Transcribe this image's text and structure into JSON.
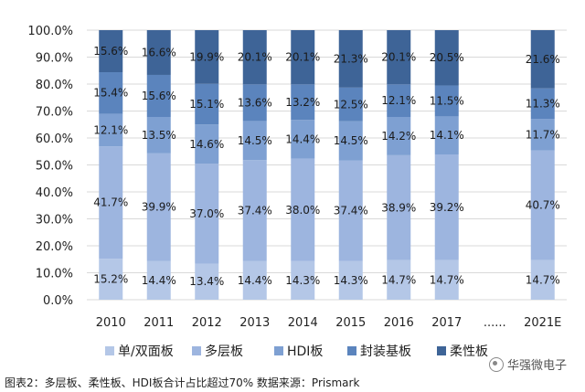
{
  "caption": "图表2：多层板、柔性板、HDI板合计占比超过70% 数据来源：Prismark",
  "watermark": "华强微电子",
  "chart_data": {
    "type": "bar",
    "stacked": true,
    "categories": [
      "2010",
      "2011",
      "2012",
      "2013",
      "2014",
      "2015",
      "2016",
      "2017",
      "......",
      "2021E"
    ],
    "yticks": [
      "0.0%",
      "10.0%",
      "20.0%",
      "30.0%",
      "40.0%",
      "50.0%",
      "60.0%",
      "70.0%",
      "80.0%",
      "90.0%",
      "100.0%"
    ],
    "ylim": [
      0,
      100
    ],
    "grid": true,
    "legend_position": "bottom",
    "series": [
      {
        "name": "单/双面板",
        "color": "#b4c7e7",
        "values": [
          15.2,
          14.4,
          13.4,
          14.4,
          14.3,
          14.3,
          14.7,
          14.7,
          null,
          14.7
        ],
        "labels": [
          "15.2%",
          "14.4%",
          "13.4%",
          "14.4%",
          "14.3%",
          "14.3%",
          "14.7%",
          "14.7%",
          "",
          "14.7%"
        ]
      },
      {
        "name": "多层板",
        "color": "#9db5df",
        "values": [
          41.7,
          39.9,
          37.0,
          37.4,
          38.0,
          37.4,
          38.9,
          39.2,
          null,
          40.7
        ],
        "labels": [
          "41.7%",
          "39.9%",
          "37.0%",
          "37.4%",
          "38.0%",
          "37.4%",
          "38.9%",
          "39.2%",
          "",
          "40.7%"
        ]
      },
      {
        "name": "HDI板",
        "color": "#7ea0d2",
        "values": [
          12.1,
          13.5,
          14.6,
          14.5,
          14.4,
          14.5,
          14.2,
          14.1,
          null,
          11.7
        ],
        "labels": [
          "12.1%",
          "13.5%",
          "14.6%",
          "14.5%",
          "14.4%",
          "14.5%",
          "14.2%",
          "14.1%",
          "",
          "11.7%"
        ]
      },
      {
        "name": "封装基板",
        "color": "#5b84bd",
        "values": [
          15.4,
          15.6,
          15.1,
          13.6,
          13.2,
          12.5,
          12.1,
          11.5,
          null,
          11.3
        ],
        "labels": [
          "15.4%",
          "15.6%",
          "15.1%",
          "13.6%",
          "13.2%",
          "12.5%",
          "12.1%",
          "11.5%",
          "",
          "11.3%"
        ]
      },
      {
        "name": "柔性板",
        "color": "#3e6497",
        "values": [
          15.6,
          16.6,
          19.9,
          20.1,
          20.1,
          21.3,
          20.1,
          20.5,
          null,
          21.6
        ],
        "labels": [
          "15.6%",
          "16.6%",
          "19.9%",
          "20.1%",
          "20.1%",
          "21.3%",
          "20.1%",
          "20.5%",
          "",
          "21.6%"
        ]
      }
    ]
  }
}
